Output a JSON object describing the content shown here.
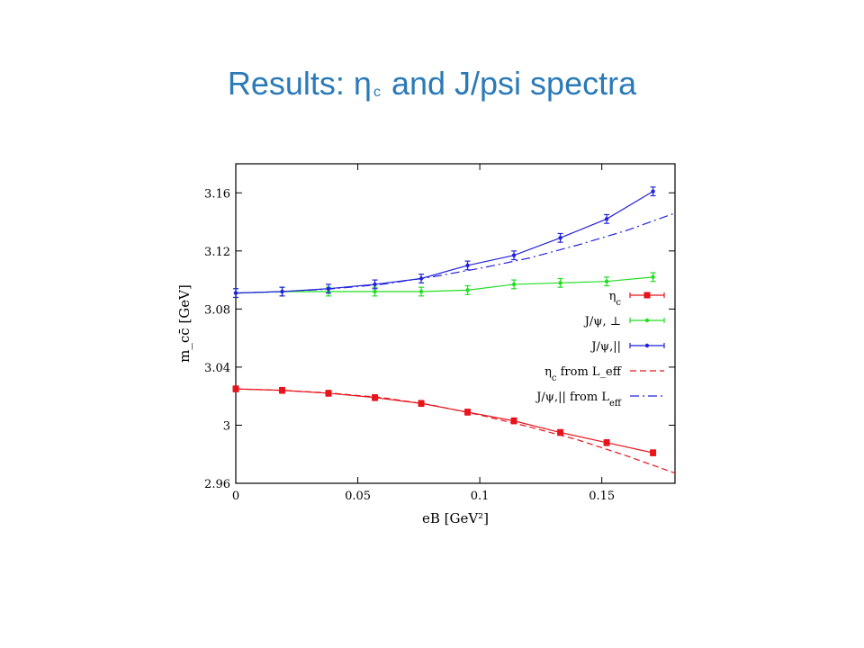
{
  "slide": {
    "title_pre": "Results: η",
    "title_sub": "c",
    "title_post": " and J/psi spectra"
  },
  "chart_data": {
    "type": "scatter",
    "xlabel": "eB [GeV²]",
    "ylabel": "m_cc̄ [GeV]",
    "xlim": [
      0,
      0.18
    ],
    "ylim": [
      2.96,
      3.18
    ],
    "xticks": [
      0,
      0.05,
      0.1,
      0.15
    ],
    "xtick_labels": [
      "0",
      "0.05",
      "0.1",
      "0.15"
    ],
    "yticks": [
      2.96,
      3,
      3.04,
      3.08,
      3.12,
      3.16
    ],
    "ytick_labels": [
      "2.96",
      "3",
      "3.04",
      "3.08",
      "3.12",
      "3.16"
    ],
    "grid": false,
    "legend_position": "right",
    "x": [
      0,
      0.019,
      0.038,
      0.057,
      0.076,
      0.095,
      0.114,
      0.133,
      0.152,
      0.171
    ],
    "series": [
      {
        "name": "η_c",
        "color": "#e8141c",
        "marker": "square",
        "values": [
          3.025,
          3.024,
          3.022,
          3.019,
          3.015,
          3.009,
          3.003,
          2.995,
          2.988,
          2.981
        ],
        "errors": [
          0.002,
          0.002,
          0.002,
          0.002,
          0.002,
          0.002,
          0.002,
          0.002,
          0.002,
          0.002
        ]
      },
      {
        "name": "J/ψ, ⊥",
        "color": "#22dd22",
        "marker": "dot",
        "values": [
          3.091,
          3.092,
          3.092,
          3.092,
          3.092,
          3.093,
          3.097,
          3.098,
          3.099,
          3.102
        ],
        "errors": [
          0.003,
          0.003,
          0.003,
          0.003,
          0.003,
          0.003,
          0.003,
          0.003,
          0.003,
          0.003
        ]
      },
      {
        "name": "J/ψ,||",
        "color": "#2222dd",
        "marker": "dot",
        "values": [
          3.091,
          3.092,
          3.094,
          3.097,
          3.101,
          3.11,
          3.117,
          3.129,
          3.142,
          3.161
        ],
        "errors": [
          0.003,
          0.003,
          0.003,
          0.003,
          0.003,
          0.003,
          0.003,
          0.003,
          0.003,
          0.003
        ]
      }
    ],
    "curves": [
      {
        "name": "η_c from L_eff",
        "color": "#e8141c",
        "dash": "dashed",
        "x": [
          0,
          0.02,
          0.04,
          0.06,
          0.08,
          0.1,
          0.12,
          0.14,
          0.16,
          0.18
        ],
        "y": [
          3.025,
          3.024,
          3.022,
          3.019,
          3.014,
          3.007,
          2.999,
          2.99,
          2.979,
          2.967
        ]
      },
      {
        "name": "J/ψ,|| from L_eff",
        "color": "#2222dd",
        "dash": "dashdot",
        "x": [
          0,
          0.02,
          0.04,
          0.06,
          0.08,
          0.1,
          0.12,
          0.14,
          0.16,
          0.18
        ],
        "y": [
          3.091,
          3.092,
          3.094,
          3.097,
          3.102,
          3.108,
          3.115,
          3.124,
          3.134,
          3.146
        ]
      }
    ],
    "legend": [
      {
        "label": "η_c",
        "style": "err-square",
        "color": "#e8141c"
      },
      {
        "label": "J/ψ, ⊥",
        "style": "err-dot",
        "color": "#22dd22"
      },
      {
        "label": "J/ψ,||",
        "style": "err-dot",
        "color": "#2222dd"
      },
      {
        "label": "η_c from L_eff",
        "style": "dashed",
        "color": "#e8141c"
      },
      {
        "label": "J/ψ,|| from L_eff",
        "style": "dashdot",
        "color": "#2222dd"
      }
    ]
  }
}
